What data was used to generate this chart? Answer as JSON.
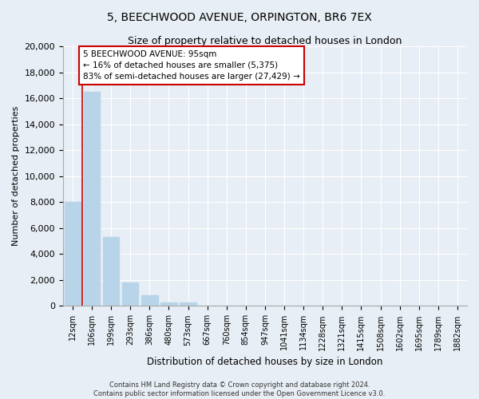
{
  "title": "5, BEECHWOOD AVENUE, ORPINGTON, BR6 7EX",
  "subtitle": "Size of property relative to detached houses in London",
  "xlabel": "Distribution of detached houses by size in London",
  "ylabel": "Number of detached properties",
  "bar_labels": [
    "12sqm",
    "106sqm",
    "199sqm",
    "293sqm",
    "386sqm",
    "480sqm",
    "573sqm",
    "667sqm",
    "760sqm",
    "854sqm",
    "947sqm",
    "1041sqm",
    "1134sqm",
    "1228sqm",
    "1321sqm",
    "1415sqm",
    "1508sqm",
    "1602sqm",
    "1695sqm",
    "1789sqm",
    "1882sqm"
  ],
  "bar_values": [
    8000,
    16500,
    5300,
    1800,
    800,
    300,
    300,
    0,
    0,
    0,
    0,
    0,
    0,
    0,
    0,
    0,
    0,
    0,
    0,
    0,
    0
  ],
  "bar_color": "#b8d4e8",
  "red_line_color": "#cc0000",
  "property_sqm": 95,
  "pct_smaller": 16,
  "n_smaller": 5375,
  "pct_larger": 83,
  "n_larger": 27429,
  "ylim": [
    0,
    20000
  ],
  "yticks": [
    0,
    2000,
    4000,
    6000,
    8000,
    10000,
    12000,
    14000,
    16000,
    18000,
    20000
  ],
  "annotation_box_color": "#ffffff",
  "annotation_box_edge": "#cc0000",
  "footer_line1": "Contains HM Land Registry data © Crown copyright and database right 2024.",
  "footer_line2": "Contains public sector information licensed under the Open Government Licence v3.0.",
  "bg_color": "#e8eef5",
  "grid_color": "#ffffff",
  "spine_color": "#aaaaaa"
}
